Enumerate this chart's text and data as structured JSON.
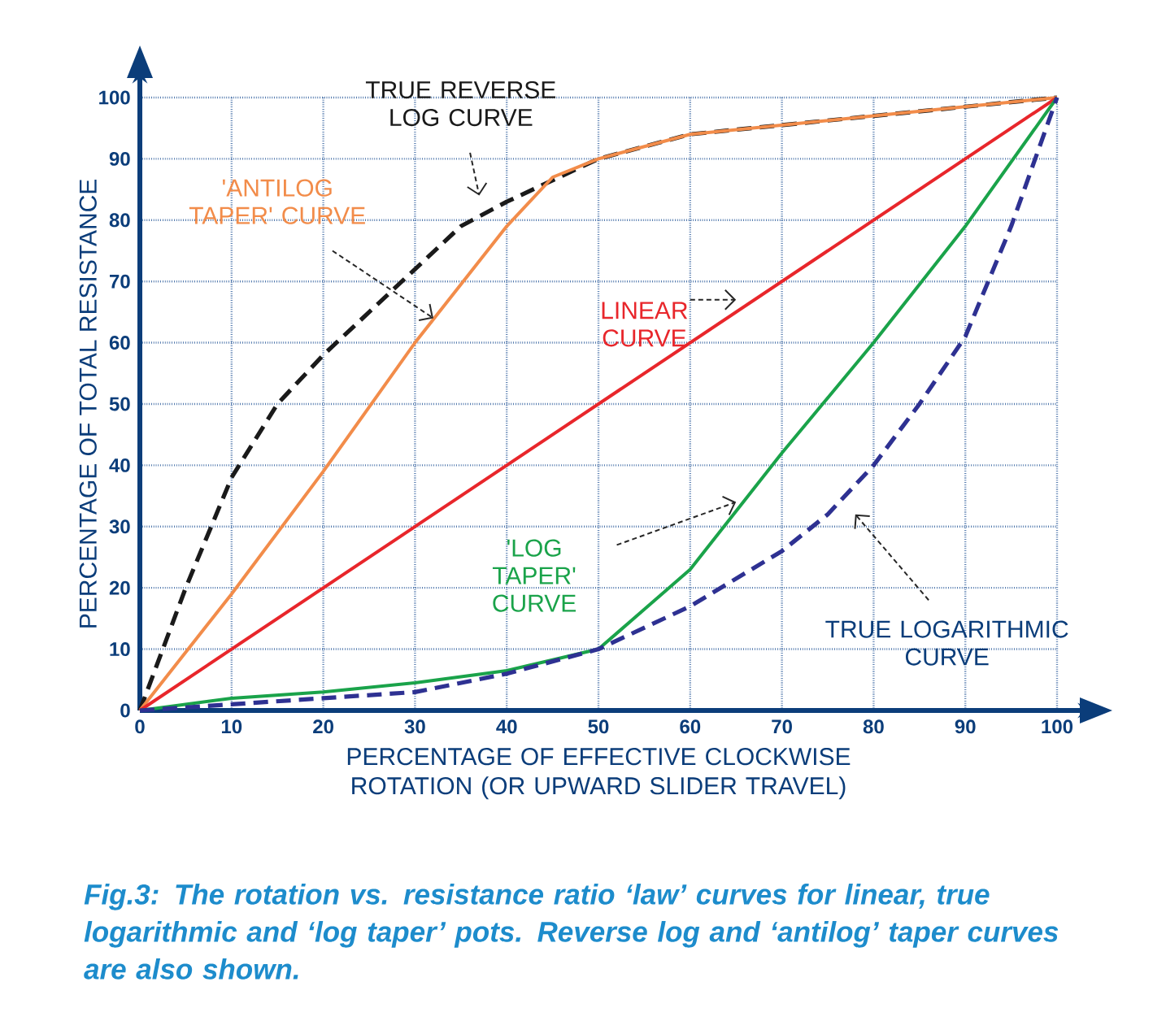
{
  "chart_data": {
    "type": "line",
    "xlabel": "PERCENTAGE OF EFFECTIVE CLOCKWISE ROTATION (OR UPWARD SLIDER TRAVEL)",
    "ylabel": "PERCENTAGE OF TOTAL RESISTANCE",
    "xlim": [
      0,
      100
    ],
    "ylim": [
      0,
      100
    ],
    "xticks": [
      0,
      10,
      20,
      30,
      40,
      50,
      60,
      70,
      80,
      90,
      100
    ],
    "yticks": [
      0,
      10,
      20,
      30,
      40,
      50,
      60,
      70,
      80,
      90,
      100
    ],
    "grid": true,
    "legend": false,
    "marker": "none",
    "series": [
      {
        "name": "TRUE REVERSE LOG CURVE",
        "color": "#1a1a1a",
        "line_style": "dashed",
        "x": [
          0,
          5,
          10,
          15,
          20,
          25,
          30,
          35,
          40,
          50,
          60,
          80,
          100
        ],
        "values": [
          0,
          20,
          38,
          50,
          58,
          65,
          72,
          79,
          83,
          90,
          94,
          97,
          100
        ]
      },
      {
        "name": "'ANTILOG TAPER' CURVE",
        "color": "#f28c4a",
        "line_style": "solid",
        "x": [
          0,
          10,
          20,
          30,
          40,
          45,
          50,
          60,
          80,
          100
        ],
        "values": [
          0,
          19,
          39,
          60,
          79,
          87,
          90,
          94,
          97,
          100
        ]
      },
      {
        "name": "LINEAR CURVE",
        "color": "#e8262b",
        "line_style": "solid",
        "x": [
          0,
          100
        ],
        "values": [
          0,
          100
        ]
      },
      {
        "name": "'LOG TAPER' CURVE",
        "color": "#1aa34a",
        "line_style": "solid",
        "x": [
          0,
          10,
          20,
          30,
          40,
          50,
          60,
          70,
          80,
          90,
          100
        ],
        "values": [
          0,
          2,
          3,
          4.5,
          6.5,
          10,
          23,
          42,
          60,
          79,
          100
        ]
      },
      {
        "name": "TRUE LOGARITHMIC CURVE",
        "color": "#2e3192",
        "line_style": "dashed",
        "x": [
          0,
          10,
          20,
          30,
          40,
          50,
          60,
          70,
          75,
          80,
          85,
          90,
          95,
          100
        ],
        "values": [
          0,
          1,
          2,
          3,
          6,
          10,
          17,
          26,
          32,
          40,
          50,
          61,
          79,
          100
        ]
      }
    ],
    "annotations": [
      "Fig.3: The rotation vs. resistance ratio ‘law’ curves for linear, true logarithmic and ‘log taper’ pots. Reverse log and ‘antilog’ taper curves are also shown."
    ]
  }
}
